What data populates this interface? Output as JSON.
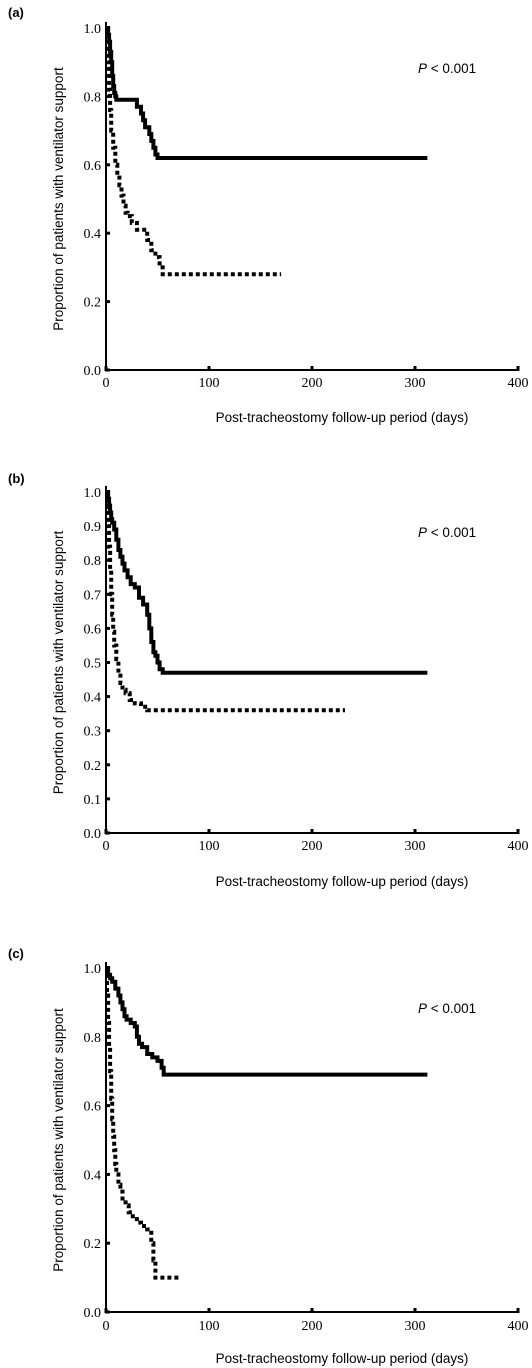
{
  "chart_data": [
    {
      "type": "line",
      "panel_label": "(a)",
      "xlabel": "Post-tracheostomy follow-up period (days)",
      "ylabel": "Proportion of patients with ventilator support",
      "annotation": {
        "italic": "P",
        "text": " < 0.001"
      },
      "xlim": [
        0,
        400
      ],
      "ylim": [
        0,
        1.0
      ],
      "xticks": [
        0,
        100,
        200,
        300,
        400
      ],
      "yticks": [
        0.0,
        0.2,
        0.4,
        0.6,
        0.8,
        1.0
      ],
      "ytick_labels": [
        "0.0",
        "0.2",
        "0.4",
        "0.6",
        "0.8",
        "1.0"
      ],
      "grid": false,
      "series": [
        {
          "style": "solid",
          "x": [
            0,
            2,
            3,
            4,
            5,
            6,
            7,
            8,
            9,
            10,
            12,
            28,
            30,
            34,
            36,
            38,
            42,
            44,
            46,
            48,
            50,
            312
          ],
          "y": [
            1.0,
            0.98,
            0.96,
            0.93,
            0.9,
            0.86,
            0.83,
            0.81,
            0.8,
            0.79,
            0.79,
            0.79,
            0.77,
            0.75,
            0.73,
            0.71,
            0.69,
            0.67,
            0.65,
            0.63,
            0.62,
            0.62
          ]
        },
        {
          "style": "dotted",
          "x": [
            0,
            2,
            3,
            4,
            5,
            7,
            9,
            11,
            13,
            15,
            17,
            19,
            21,
            25,
            30,
            35,
            40,
            44,
            48,
            52,
            55,
            170
          ],
          "y": [
            1.0,
            0.9,
            0.82,
            0.76,
            0.7,
            0.65,
            0.6,
            0.57,
            0.54,
            0.51,
            0.48,
            0.46,
            0.45,
            0.43,
            0.41,
            0.41,
            0.38,
            0.35,
            0.33,
            0.3,
            0.28,
            0.28
          ]
        }
      ]
    },
    {
      "type": "line",
      "panel_label": "(b)",
      "xlabel": "Post-tracheostomy follow-up period (days)",
      "ylabel": "Proportion of patients with ventilator support",
      "annotation": {
        "italic": "P",
        "text": " < 0.001"
      },
      "xlim": [
        0,
        400
      ],
      "ylim": [
        0,
        1.0
      ],
      "xticks": [
        0,
        100,
        200,
        300,
        400
      ],
      "yticks": [
        0.0,
        0.1,
        0.2,
        0.3,
        0.4,
        0.5,
        0.6,
        0.7,
        0.8,
        0.9,
        1.0
      ],
      "ytick_labels": [
        "0.0",
        "0.1",
        "0.2",
        "0.3",
        "0.4",
        "0.5",
        "0.6",
        "0.7",
        "0.8",
        "0.9",
        "1.0"
      ],
      "grid": false,
      "series": [
        {
          "style": "solid",
          "x": [
            0,
            2,
            3,
            4,
            5,
            6,
            8,
            10,
            12,
            14,
            16,
            18,
            21,
            24,
            28,
            32,
            36,
            40,
            42,
            44,
            46,
            48,
            50,
            52,
            55,
            312
          ],
          "y": [
            1.0,
            0.98,
            0.96,
            0.94,
            0.92,
            0.91,
            0.89,
            0.86,
            0.83,
            0.81,
            0.79,
            0.77,
            0.75,
            0.73,
            0.72,
            0.69,
            0.67,
            0.64,
            0.6,
            0.56,
            0.53,
            0.52,
            0.5,
            0.48,
            0.47,
            0.47
          ]
        },
        {
          "style": "dotted",
          "x": [
            0,
            1,
            2,
            3,
            4,
            5,
            6,
            7,
            8,
            10,
            12,
            14,
            16,
            19,
            23,
            28,
            34,
            40,
            232
          ],
          "y": [
            1.0,
            0.95,
            0.9,
            0.84,
            0.77,
            0.7,
            0.64,
            0.59,
            0.55,
            0.51,
            0.47,
            0.44,
            0.42,
            0.41,
            0.39,
            0.38,
            0.37,
            0.36,
            0.36
          ]
        }
      ]
    },
    {
      "type": "line",
      "panel_label": "(c)",
      "xlabel": "Post-tracheostomy follow-up period (days)",
      "ylabel": "Proportion of patients with ventilator support",
      "annotation": {
        "italic": "P",
        "text": " < 0.001"
      },
      "xlim": [
        0,
        400
      ],
      "ylim": [
        0,
        1.0
      ],
      "xticks": [
        0,
        100,
        200,
        300,
        400
      ],
      "yticks": [
        0.0,
        0.2,
        0.4,
        0.6,
        0.8,
        1.0
      ],
      "ytick_labels": [
        "0.0",
        "0.2",
        "0.4",
        "0.6",
        "0.8",
        "1.0"
      ],
      "grid": false,
      "series": [
        {
          "style": "solid",
          "x": [
            0,
            2,
            4,
            6,
            9,
            12,
            14,
            16,
            18,
            20,
            24,
            28,
            30,
            32,
            35,
            40,
            45,
            50,
            54,
            56,
            312
          ],
          "y": [
            1.0,
            0.98,
            0.97,
            0.96,
            0.94,
            0.92,
            0.9,
            0.88,
            0.86,
            0.85,
            0.84,
            0.83,
            0.8,
            0.78,
            0.77,
            0.75,
            0.74,
            0.73,
            0.71,
            0.69,
            0.69
          ]
        },
        {
          "style": "dotted",
          "x": [
            0,
            1,
            2,
            3,
            4,
            5,
            6,
            7,
            8,
            9,
            10,
            12,
            14,
            16,
            19,
            22,
            26,
            30,
            34,
            40,
            44,
            46,
            48,
            72
          ],
          "y": [
            1.0,
            0.92,
            0.84,
            0.77,
            0.7,
            0.62,
            0.56,
            0.51,
            0.47,
            0.43,
            0.4,
            0.37,
            0.35,
            0.33,
            0.31,
            0.29,
            0.27,
            0.26,
            0.25,
            0.24,
            0.2,
            0.15,
            0.1,
            0.1
          ]
        }
      ]
    }
  ]
}
